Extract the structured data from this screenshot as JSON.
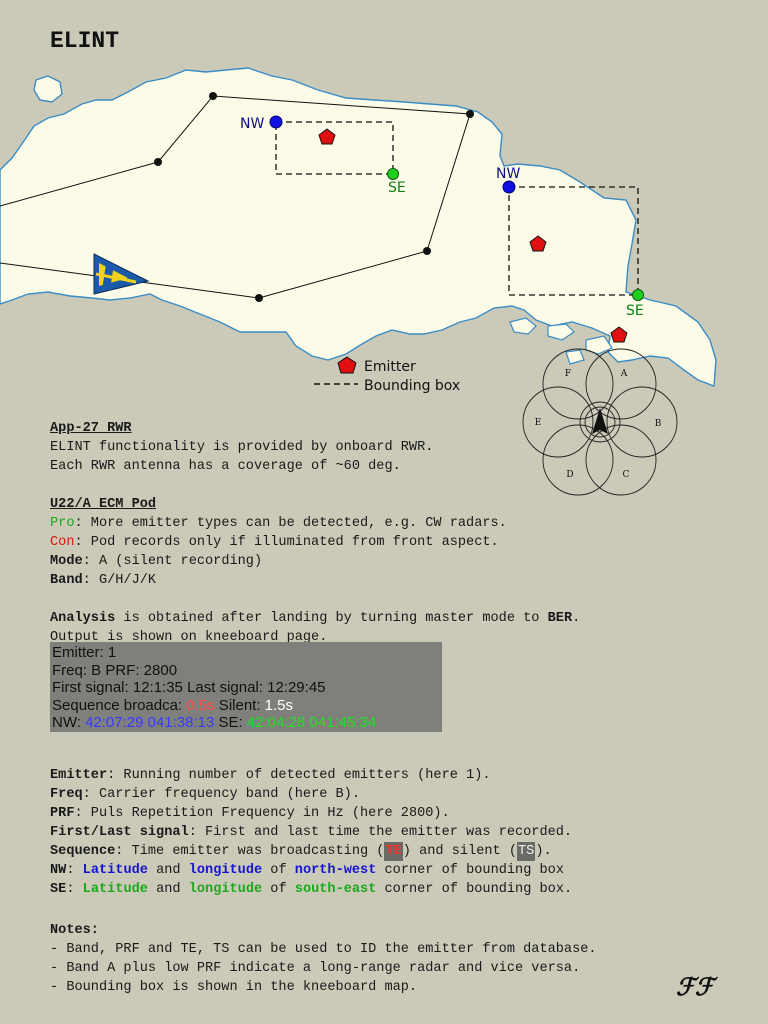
{
  "title": "ELINT",
  "map": {
    "nw_label_1": "NW",
    "se_label_1": "SE",
    "nw_label_2": "NW",
    "se_label_2": "SE",
    "legend_emitter": "Emitter",
    "legend_bbox": "Bounding box",
    "colors": {
      "land": "#fbfbe8",
      "coast": "#3a8cc4",
      "emitter": "#e01010",
      "nw_point": "#1010e0",
      "se_point": "#20d020",
      "nw_text": "#101080",
      "se_text": "#108010"
    },
    "icons": [
      "emitter-icon",
      "aircraft-icon",
      "waypoint-icon"
    ]
  },
  "antenna": {
    "labels": [
      "A",
      "B",
      "C",
      "D",
      "E",
      "F"
    ]
  },
  "rwr": {
    "heading": "App-27 RWR",
    "line1": "ELINT functionality is provided by onboard RWR.",
    "line2": "Each RWR antenna has a coverage of ~60 deg."
  },
  "ecm": {
    "heading": "U22/A ECM Pod",
    "pro_label": "Pro",
    "pro_text": ": More emitter types can be detected, e.g. CW radars.",
    "con_label": "Con",
    "con_text": ": Pod records only if illuminated from front aspect.",
    "mode_label": "Mode",
    "mode_text": ": A (silent recording)",
    "band_label": "Band",
    "band_text": ": G/H/J/K"
  },
  "analysis": {
    "label": "Analysis",
    "text_a": " is obtained after landing by turning master mode to ",
    "ber": "BER",
    "text_b": ".",
    "line2": "Output is shown on kneeboard page."
  },
  "kneeboard": {
    "line1": "Emitter: 1",
    "line2": "Freq: B PRF: 2800",
    "line3": "First signal: 12:1:35 Last signal: 12:29:45",
    "seq_label": "Sequence broadca: ",
    "seq_te": "0.5s",
    "silent_label": " Silent: ",
    "silent_ts": "1.5s",
    "nw_label": "NW: ",
    "nw_coord": "42:07:29 041:38:13",
    "se_label": " SE: ",
    "se_coord": "42:04:28 041:45:34"
  },
  "definitions": {
    "emitter_label": "Emitter",
    "emitter_text": ": Running number of detected emitters (here 1).",
    "freq_label": "Freq",
    "freq_text": ": Carrier frequency band (here B).",
    "prf_label": "PRF",
    "prf_text": ": Puls Repetition Frequency in Hz (here 2800).",
    "fl_label": "First/Last signal",
    "fl_text": ": First and last time the emitter was recorded.",
    "seq_label": "Sequence",
    "seq_text_a": ": Time emitter was broadcasting (",
    "seq_te": "TE",
    "seq_text_b": ") and silent (",
    "seq_ts": "TS",
    "seq_text_c": ").",
    "nw_label": "NW",
    "nw_sep": ": ",
    "nw_lat": "Latitude",
    "nw_and": " and ",
    "nw_lon": "longitude",
    "nw_of": " of ",
    "nw_corner": "north-west",
    "nw_rest": " corner of bounding box",
    "se_label": "SE",
    "se_sep": ": ",
    "se_lat": "Latitude",
    "se_and": " and ",
    "se_lon": "longitude",
    "se_of": " of ",
    "se_corner": "south-east",
    "se_rest": " corner of bounding box."
  },
  "notes": {
    "heading": "Notes:",
    "line1": "- Band, PRF and TE, TS can be used to ID the emitter from database.",
    "line2": "- Band A plus low PRF indicate a long-range radar and vice versa.",
    "line3": "- Bounding box is shown in the kneeboard map."
  },
  "signature": "ℱℱ"
}
